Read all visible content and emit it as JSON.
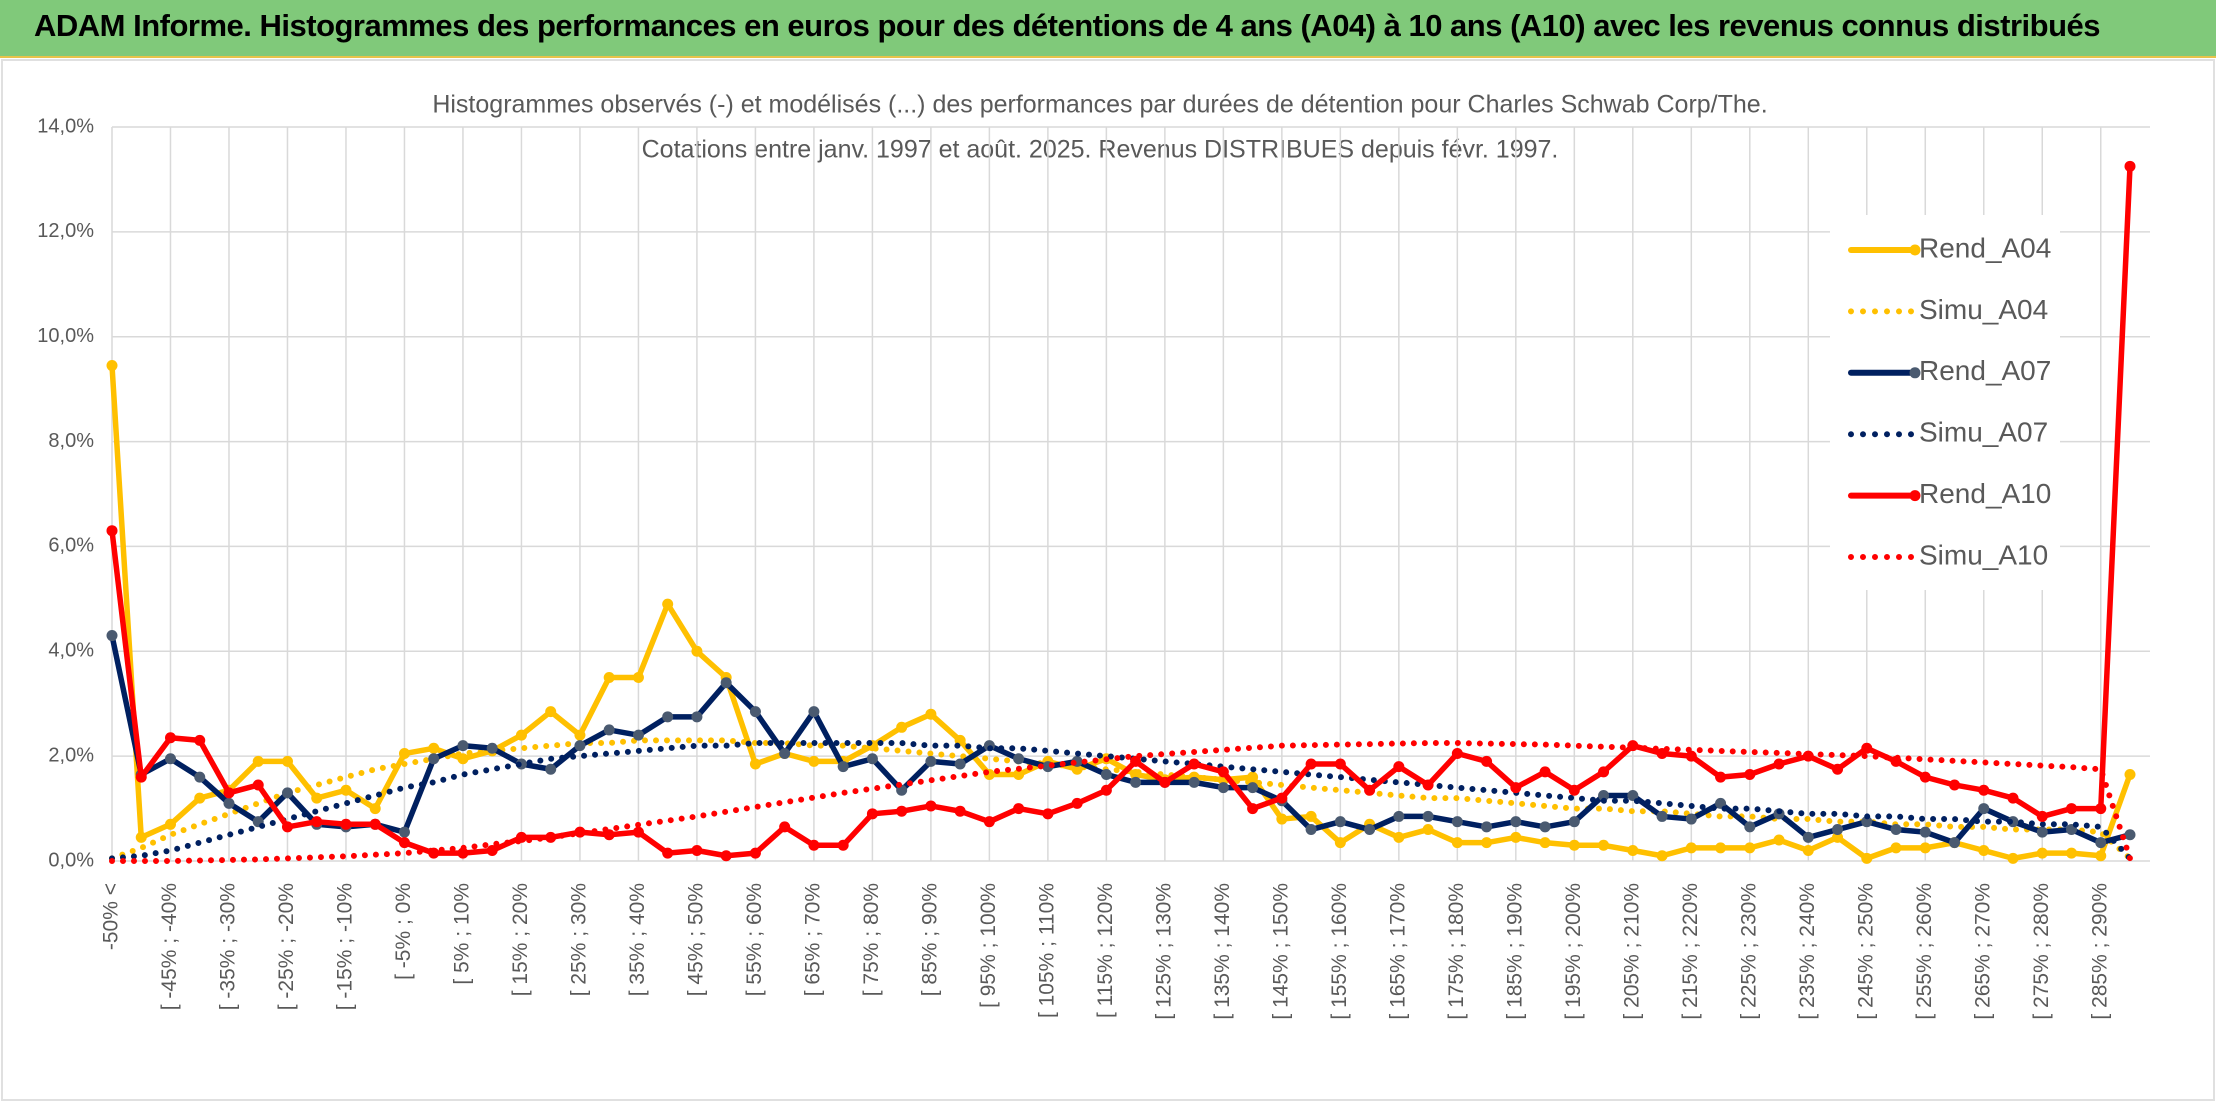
{
  "header": {
    "title": "ADAM Informe. Histogrammes des performances en euros pour des détentions de 4 ans (A04) à 10 ans (A10) avec les revenus connus distribués"
  },
  "chart_data": {
    "type": "line",
    "title": "Histogrammes observés (-) et modélisés (...) des performances par durées de détention pour Charles Schwab Corp/The.",
    "subtitle": "Cotations entre janv. 1997 et août. 2025. Revenus DISTRIBUES depuis févr. 1997.",
    "categories": [
      "-50% <",
      null,
      "[ -45% ; -40%",
      null,
      "[ -35% ; -30%",
      null,
      "[ -25% ; -20%",
      null,
      "[ -15% ; -10%",
      null,
      "[ -5% ; 0%",
      null,
      "[ 5% ; 10%",
      null,
      "[ 15% ; 20%",
      null,
      "[ 25% ; 30%",
      null,
      "[ 35% ; 40%",
      null,
      "[ 45% ; 50%",
      null,
      "[ 55% ; 60%",
      null,
      "[ 65% ; 70%",
      null,
      "[ 75% ; 80%",
      null,
      "[ 85% ; 90%",
      null,
      "[ 95% ; 100%",
      null,
      "[ 105% ; 110%",
      null,
      "[ 115% ; 120%",
      null,
      "[ 125% ; 130%",
      null,
      "[ 135% ; 140%",
      null,
      "[ 145% ; 150%",
      null,
      "[ 155% ; 160%",
      null,
      "[ 165% ; 170%",
      null,
      "[ 175% ; 180%",
      null,
      "[ 185% ; 190%",
      null,
      "[ 195% ; 200%",
      null,
      "[ 205% ; 210%",
      null,
      "[ 215% ; 220%",
      null,
      "[ 225% ; 230%",
      null,
      "[ 235% ; 240%",
      null,
      "[ 245% ; 250%",
      null,
      "[ 255% ; 260%",
      null,
      "[ 265% ; 270%",
      null,
      "[ 275% ; 280%",
      null,
      "[ 285% ; 290%",
      null
    ],
    "ylim": [
      0,
      14
    ],
    "yticks": [
      {
        "value": 0,
        "label": "0,0%"
      },
      {
        "value": 2,
        "label": "2,0%"
      },
      {
        "value": 4,
        "label": "4,0%"
      },
      {
        "value": 6,
        "label": "6,0%"
      },
      {
        "value": 8,
        "label": "8,0%"
      },
      {
        "value": 10,
        "label": "10,0%"
      },
      {
        "value": 12,
        "label": "12,0%"
      },
      {
        "value": 14,
        "label": "14,0%"
      }
    ],
    "grid": true,
    "legend": "right",
    "series": [
      {
        "name": "Rend_A04",
        "color": "#ffc000",
        "style": "solid",
        "values": [
          9.45,
          0.45,
          0.7,
          1.2,
          1.35,
          1.9,
          1.9,
          1.2,
          1.35,
          1.0,
          2.05,
          2.15,
          1.95,
          2.1,
          2.4,
          2.85,
          2.4,
          3.5,
          3.5,
          4.9,
          4.0,
          3.5,
          1.85,
          2.05,
          1.9,
          1.9,
          2.2,
          2.55,
          2.8,
          2.3,
          1.65,
          1.65,
          1.9,
          1.75,
          1.95,
          1.65,
          1.55,
          1.6,
          1.55,
          1.6,
          0.8,
          0.85,
          0.35,
          0.7,
          0.45,
          0.6,
          0.35,
          0.35,
          0.45,
          0.35,
          0.3,
          0.3,
          0.2,
          0.1,
          0.25,
          0.25,
          0.25,
          0.4,
          0.2,
          0.45,
          0.05,
          0.25,
          0.25,
          0.35,
          0.2,
          0.05,
          0.15,
          0.15,
          0.1,
          1.65
        ]
      },
      {
        "name": "Simu_A04",
        "color": "#ffc000",
        "style": "dotted",
        "values": [
          0.05,
          0.25,
          0.5,
          0.7,
          0.9,
          1.1,
          1.3,
          1.45,
          1.6,
          1.75,
          1.85,
          1.95,
          2.05,
          2.1,
          2.15,
          2.2,
          2.25,
          2.25,
          2.3,
          2.3,
          2.3,
          2.3,
          2.25,
          2.25,
          2.2,
          2.2,
          2.15,
          2.1,
          2.05,
          2.0,
          1.95,
          1.9,
          1.85,
          1.8,
          1.75,
          1.7,
          1.65,
          1.6,
          1.55,
          1.5,
          1.45,
          1.4,
          1.35,
          1.3,
          1.25,
          1.2,
          1.2,
          1.15,
          1.1,
          1.05,
          1.0,
          1.0,
          0.95,
          0.95,
          0.9,
          0.85,
          0.85,
          0.8,
          0.8,
          0.75,
          0.75,
          0.7,
          0.7,
          0.65,
          0.65,
          0.6,
          0.6,
          0.6,
          0.55,
          0.05
        ]
      },
      {
        "name": "Rend_A07",
        "color": "#002060",
        "style": "solid",
        "values": [
          4.3,
          1.65,
          1.95,
          1.6,
          1.1,
          0.75,
          1.3,
          0.7,
          0.65,
          0.7,
          0.55,
          1.95,
          2.2,
          2.15,
          1.85,
          1.75,
          2.2,
          2.5,
          2.4,
          2.75,
          2.75,
          3.4,
          2.85,
          2.05,
          2.85,
          1.8,
          1.95,
          1.35,
          1.9,
          1.85,
          2.2,
          1.95,
          1.8,
          1.9,
          1.65,
          1.5,
          1.5,
          1.5,
          1.4,
          1.4,
          1.15,
          0.6,
          0.75,
          0.6,
          0.85,
          0.85,
          0.75,
          0.65,
          0.75,
          0.65,
          0.75,
          1.25,
          1.25,
          0.85,
          0.8,
          1.1,
          0.65,
          0.9,
          0.45,
          0.6,
          0.75,
          0.6,
          0.55,
          0.35,
          1.0,
          0.75,
          0.55,
          0.6,
          0.35,
          0.5
        ]
      },
      {
        "name": "Simu_A07",
        "color": "#002060",
        "style": "dotted",
        "values": [
          0.05,
          0.1,
          0.2,
          0.35,
          0.5,
          0.65,
          0.8,
          0.95,
          1.1,
          1.25,
          1.4,
          1.5,
          1.65,
          1.75,
          1.85,
          1.95,
          2.0,
          2.05,
          2.1,
          2.15,
          2.2,
          2.2,
          2.25,
          2.25,
          2.25,
          2.25,
          2.25,
          2.25,
          2.2,
          2.2,
          2.15,
          2.15,
          2.1,
          2.05,
          2.0,
          1.95,
          1.9,
          1.85,
          1.8,
          1.75,
          1.7,
          1.65,
          1.6,
          1.55,
          1.5,
          1.45,
          1.4,
          1.35,
          1.3,
          1.25,
          1.2,
          1.15,
          1.15,
          1.1,
          1.05,
          1.0,
          1.0,
          0.95,
          0.9,
          0.9,
          0.85,
          0.85,
          0.8,
          0.8,
          0.75,
          0.75,
          0.7,
          0.7,
          0.65,
          0.05
        ]
      },
      {
        "name": "Rend_A10",
        "color": "#ff0000",
        "style": "solid",
        "values": [
          6.3,
          1.6,
          2.35,
          2.3,
          1.3,
          1.45,
          0.65,
          0.75,
          0.7,
          0.7,
          0.35,
          0.15,
          0.15,
          0.2,
          0.45,
          0.45,
          0.55,
          0.5,
          0.55,
          0.15,
          0.2,
          0.1,
          0.15,
          0.65,
          0.3,
          0.3,
          0.9,
          0.95,
          1.05,
          0.95,
          0.75,
          1.0,
          0.9,
          1.1,
          1.35,
          1.9,
          1.5,
          1.85,
          1.7,
          1.0,
          1.2,
          1.85,
          1.85,
          1.35,
          1.8,
          1.45,
          2.05,
          1.9,
          1.4,
          1.7,
          1.35,
          1.7,
          2.2,
          2.05,
          2.0,
          1.6,
          1.65,
          1.85,
          2.0,
          1.75,
          2.15,
          1.9,
          1.6,
          1.45,
          1.35,
          1.2,
          0.85,
          1.0,
          1.0,
          13.25
        ]
      },
      {
        "name": "Simu_A10",
        "color": "#ff0000",
        "style": "dotted",
        "values": [
          0,
          0,
          0,
          0.01,
          0.02,
          0.03,
          0.05,
          0.07,
          0.09,
          0.12,
          0.15,
          0.2,
          0.25,
          0.32,
          0.38,
          0.45,
          0.53,
          0.61,
          0.69,
          0.77,
          0.85,
          0.94,
          1.03,
          1.12,
          1.21,
          1.3,
          1.38,
          1.46,
          1.54,
          1.62,
          1.7,
          1.76,
          1.82,
          1.88,
          1.94,
          2.0,
          2.04,
          2.08,
          2.12,
          2.16,
          2.2,
          2.21,
          2.22,
          2.23,
          2.24,
          2.25,
          2.25,
          2.24,
          2.23,
          2.22,
          2.2,
          2.18,
          2.16,
          2.14,
          2.12,
          2.1,
          2.08,
          2.06,
          2.04,
          2.02,
          2.0,
          1.97,
          1.94,
          1.91,
          1.88,
          1.85,
          1.82,
          1.79,
          1.75,
          0.05
        ]
      }
    ]
  }
}
